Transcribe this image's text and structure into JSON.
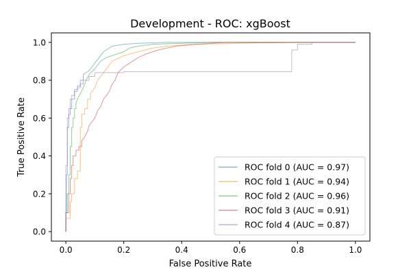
{
  "chart_data": {
    "type": "line",
    "title": "Development - ROC: xgBoost",
    "xlabel": "False Positive Rate",
    "ylabel": "True Positive Rate",
    "xlim": [
      -0.05,
      1.05
    ],
    "ylim": [
      -0.05,
      1.05
    ],
    "xticks": [
      0.0,
      0.2,
      0.4,
      0.6,
      0.8,
      1.0
    ],
    "yticks": [
      0.0,
      0.2,
      0.4,
      0.6,
      0.8,
      1.0
    ],
    "xtick_labels": [
      "0.0",
      "0.2",
      "0.4",
      "0.6",
      "0.8",
      "1.0"
    ],
    "ytick_labels": [
      "0.0",
      "0.2",
      "0.4",
      "0.6",
      "0.8",
      "1.0"
    ],
    "grid": false,
    "legend_position": "lower right",
    "series": [
      {
        "name": "ROC fold 0 (AUC = 0.97)",
        "color": "#1f77b4",
        "points": [
          [
            0.0,
            0.0
          ],
          [
            0.0,
            0.1
          ],
          [
            0.002,
            0.1
          ],
          [
            0.002,
            0.3
          ],
          [
            0.005,
            0.3
          ],
          [
            0.005,
            0.55
          ],
          [
            0.01,
            0.55
          ],
          [
            0.01,
            0.62
          ],
          [
            0.015,
            0.62
          ],
          [
            0.015,
            0.65
          ],
          [
            0.02,
            0.65
          ],
          [
            0.02,
            0.7
          ],
          [
            0.03,
            0.7
          ],
          [
            0.03,
            0.75
          ],
          [
            0.04,
            0.75
          ],
          [
            0.04,
            0.77
          ],
          [
            0.05,
            0.77
          ],
          [
            0.05,
            0.8
          ],
          [
            0.06,
            0.8
          ],
          [
            0.06,
            0.83
          ],
          [
            0.08,
            0.85
          ],
          [
            0.09,
            0.87
          ],
          [
            0.1,
            0.89
          ],
          [
            0.11,
            0.91
          ],
          [
            0.12,
            0.93
          ],
          [
            0.13,
            0.95
          ],
          [
            0.14,
            0.96
          ],
          [
            0.15,
            0.97
          ],
          [
            0.16,
            0.98
          ],
          [
            0.18,
            0.985
          ],
          [
            0.2,
            0.99
          ],
          [
            0.25,
            0.995
          ],
          [
            0.35,
            1.0
          ],
          [
            1.0,
            1.0
          ]
        ]
      },
      {
        "name": "ROC fold 1 (AUC = 0.94)",
        "color": "#ff7f0e",
        "points": [
          [
            0.0,
            0.0
          ],
          [
            0.0,
            0.07
          ],
          [
            0.015,
            0.07
          ],
          [
            0.015,
            0.16
          ],
          [
            0.02,
            0.16
          ],
          [
            0.02,
            0.2
          ],
          [
            0.03,
            0.2
          ],
          [
            0.03,
            0.28
          ],
          [
            0.04,
            0.28
          ],
          [
            0.04,
            0.32
          ],
          [
            0.05,
            0.32
          ],
          [
            0.05,
            0.55
          ],
          [
            0.055,
            0.55
          ],
          [
            0.055,
            0.62
          ],
          [
            0.065,
            0.62
          ],
          [
            0.065,
            0.65
          ],
          [
            0.075,
            0.65
          ],
          [
            0.075,
            0.7
          ],
          [
            0.085,
            0.7
          ],
          [
            0.085,
            0.73
          ],
          [
            0.1,
            0.76
          ],
          [
            0.11,
            0.8
          ],
          [
            0.13,
            0.84
          ],
          [
            0.15,
            0.88
          ],
          [
            0.16,
            0.9
          ],
          [
            0.2,
            0.93
          ],
          [
            0.25,
            0.95
          ],
          [
            0.3,
            0.97
          ],
          [
            0.35,
            0.98
          ],
          [
            0.45,
            0.99
          ],
          [
            0.6,
            0.995
          ],
          [
            0.8,
            1.0
          ],
          [
            1.0,
            1.0
          ]
        ]
      },
      {
        "name": "ROC fold 2 (AUC = 0.96)",
        "color": "#2ca02c",
        "points": [
          [
            0.0,
            0.0
          ],
          [
            0.0,
            0.1
          ],
          [
            0.005,
            0.1
          ],
          [
            0.005,
            0.2
          ],
          [
            0.01,
            0.2
          ],
          [
            0.01,
            0.3
          ],
          [
            0.015,
            0.3
          ],
          [
            0.015,
            0.45
          ],
          [
            0.02,
            0.45
          ],
          [
            0.02,
            0.55
          ],
          [
            0.025,
            0.55
          ],
          [
            0.025,
            0.6
          ],
          [
            0.03,
            0.6
          ],
          [
            0.03,
            0.65
          ],
          [
            0.035,
            0.65
          ],
          [
            0.035,
            0.68
          ],
          [
            0.04,
            0.7
          ],
          [
            0.05,
            0.73
          ],
          [
            0.06,
            0.76
          ],
          [
            0.07,
            0.8
          ],
          [
            0.08,
            0.83
          ],
          [
            0.1,
            0.86
          ],
          [
            0.12,
            0.9
          ],
          [
            0.14,
            0.92
          ],
          [
            0.16,
            0.93
          ],
          [
            0.2,
            0.95
          ],
          [
            0.22,
            0.97
          ],
          [
            0.25,
            0.98
          ],
          [
            0.3,
            0.99
          ],
          [
            0.4,
            0.995
          ],
          [
            0.5,
            1.0
          ],
          [
            1.0,
            1.0
          ]
        ]
      },
      {
        "name": "ROC fold 3 (AUC = 0.91)",
        "color": "#d62728",
        "points": [
          [
            0.0,
            0.0
          ],
          [
            0.0,
            0.1
          ],
          [
            0.01,
            0.1
          ],
          [
            0.01,
            0.2
          ],
          [
            0.015,
            0.2
          ],
          [
            0.015,
            0.28
          ],
          [
            0.02,
            0.28
          ],
          [
            0.02,
            0.35
          ],
          [
            0.025,
            0.35
          ],
          [
            0.025,
            0.4
          ],
          [
            0.035,
            0.4
          ],
          [
            0.035,
            0.43
          ],
          [
            0.045,
            0.43
          ],
          [
            0.045,
            0.45
          ],
          [
            0.055,
            0.45
          ],
          [
            0.055,
            0.48
          ],
          [
            0.065,
            0.5
          ],
          [
            0.075,
            0.53
          ],
          [
            0.08,
            0.56
          ],
          [
            0.09,
            0.58
          ],
          [
            0.1,
            0.6
          ],
          [
            0.11,
            0.64
          ],
          [
            0.12,
            0.66
          ],
          [
            0.13,
            0.7
          ],
          [
            0.14,
            0.72
          ],
          [
            0.15,
            0.74
          ],
          [
            0.16,
            0.78
          ],
          [
            0.17,
            0.8
          ],
          [
            0.18,
            0.84
          ],
          [
            0.2,
            0.87
          ],
          [
            0.22,
            0.89
          ],
          [
            0.25,
            0.92
          ],
          [
            0.28,
            0.94
          ],
          [
            0.32,
            0.96
          ],
          [
            0.38,
            0.98
          ],
          [
            0.45,
            0.99
          ],
          [
            0.55,
            1.0
          ],
          [
            1.0,
            1.0
          ]
        ]
      },
      {
        "name": "ROC fold 4 (AUC = 0.87)",
        "color": "#9467bd",
        "points": [
          [
            0.0,
            0.0
          ],
          [
            0.0,
            0.35
          ],
          [
            0.005,
            0.35
          ],
          [
            0.005,
            0.6
          ],
          [
            0.01,
            0.6
          ],
          [
            0.01,
            0.65
          ],
          [
            0.015,
            0.65
          ],
          [
            0.015,
            0.7
          ],
          [
            0.02,
            0.7
          ],
          [
            0.02,
            0.72
          ],
          [
            0.03,
            0.72
          ],
          [
            0.03,
            0.74
          ],
          [
            0.04,
            0.74
          ],
          [
            0.04,
            0.76
          ],
          [
            0.05,
            0.76
          ],
          [
            0.05,
            0.78
          ],
          [
            0.06,
            0.78
          ],
          [
            0.06,
            0.8
          ],
          [
            0.08,
            0.8
          ],
          [
            0.08,
            0.82
          ],
          [
            0.1,
            0.82
          ],
          [
            0.1,
            0.84
          ],
          [
            0.2,
            0.84
          ],
          [
            0.2,
            0.845
          ],
          [
            0.78,
            0.845
          ],
          [
            0.78,
            0.96
          ],
          [
            0.8,
            0.96
          ],
          [
            0.8,
            0.99
          ],
          [
            0.85,
            0.99
          ],
          [
            0.85,
            1.0
          ],
          [
            1.0,
            1.0
          ]
        ]
      }
    ]
  }
}
